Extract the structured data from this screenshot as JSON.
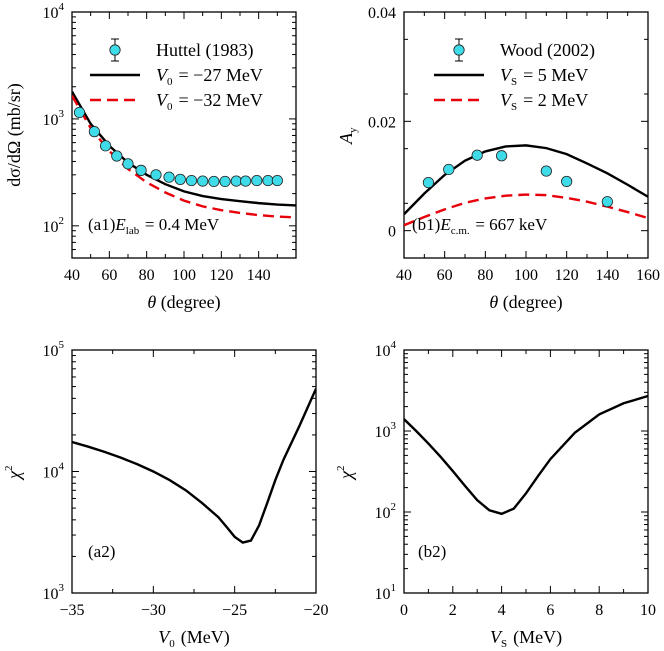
{
  "chart_data": [
    {
      "id": "a1",
      "type": "scatter+line",
      "xscale": "linear",
      "yscale": "log",
      "xlim": [
        40,
        160
      ],
      "ylim": [
        50,
        10000
      ],
      "xticks": [
        40,
        60,
        80,
        100,
        120,
        140
      ],
      "xtick_labels": [
        "40",
        "60",
        "80",
        "100",
        "120",
        "140"
      ],
      "yticks": [
        100,
        1000,
        10000
      ],
      "ytick_labels": [
        {
          "base": "10",
          "exp": "2"
        },
        {
          "base": "10",
          "exp": "3"
        },
        {
          "base": "10",
          "exp": "4"
        }
      ],
      "xlabel": "θ (degree)",
      "ylabel": "dσ/dΩ (mb/sr)",
      "annotation": {
        "prefix": "(a1)",
        "var": "E",
        "sub": "lab",
        "rest": " = 0.4 MeV"
      },
      "legend": [
        {
          "kind": "marker",
          "text": "Huttel (1983)"
        },
        {
          "kind": "solid",
          "var": "V",
          "sub": "0",
          "rest": " = −27 MeV"
        },
        {
          "kind": "dashed",
          "var": "V",
          "sub": "0",
          "rest": " = −32 MeV"
        }
      ],
      "scatter": {
        "name": "Huttel (1983)",
        "x": [
          44,
          52,
          58,
          64,
          70,
          77,
          85,
          92,
          98,
          104,
          110,
          116,
          122,
          128,
          133,
          139,
          145,
          150
        ],
        "y": [
          1150,
          760,
          560,
          450,
          380,
          330,
          300,
          285,
          272,
          265,
          262,
          260,
          260,
          262,
          262,
          265,
          265,
          265
        ]
      },
      "series": [
        {
          "name": "V0 = −27 MeV",
          "style": "solid",
          "x": [
            40,
            50,
            60,
            70,
            80,
            90,
            100,
            110,
            120,
            130,
            140,
            150,
            160
          ],
          "y": [
            1800,
            900,
            560,
            390,
            300,
            245,
            210,
            190,
            178,
            170,
            163,
            158,
            155
          ]
        },
        {
          "name": "V0 = −32 MeV",
          "style": "dashed",
          "x": [
            40,
            50,
            60,
            70,
            80,
            90,
            100,
            110,
            120,
            130,
            140,
            150,
            160
          ],
          "y": [
            1650,
            820,
            500,
            340,
            255,
            205,
            172,
            152,
            140,
            132,
            126,
            122,
            120
          ]
        }
      ]
    },
    {
      "id": "b1",
      "type": "scatter+line",
      "xscale": "linear",
      "yscale": "linear",
      "xlim": [
        40,
        160
      ],
      "ylim": [
        -0.005,
        0.04
      ],
      "xticks": [
        40,
        60,
        80,
        100,
        120,
        140,
        160
      ],
      "xtick_labels": [
        "40",
        "60",
        "80",
        "100",
        "120",
        "140",
        "160"
      ],
      "yticks": [
        0,
        0.02,
        0.04
      ],
      "ytick_labels": [
        "0",
        "0.02",
        "0.04"
      ],
      "xlabel": "θ (degree)",
      "ylabel": {
        "var": "A",
        "sub": "y"
      },
      "annotation": {
        "prefix": "(b1)",
        "var": "E",
        "sub": "c.m.",
        "rest": " = 667 keV"
      },
      "legend": [
        {
          "kind": "marker",
          "text": "Wood (2002)"
        },
        {
          "kind": "solid",
          "var": "V",
          "sub": "S",
          "rest": " = 5 MeV"
        },
        {
          "kind": "dashed",
          "var": "V",
          "sub": "S",
          "rest": " = 2 MeV"
        }
      ],
      "scatter": {
        "name": "Wood (2002)",
        "x": [
          52,
          62,
          76,
          88,
          110,
          120,
          140
        ],
        "y": [
          0.0088,
          0.0112,
          0.0138,
          0.0137,
          0.0109,
          0.009,
          0.0053
        ]
      },
      "series": [
        {
          "name": "VS = 5 MeV",
          "style": "solid",
          "x": [
            40,
            50,
            60,
            70,
            80,
            90,
            100,
            110,
            120,
            130,
            140,
            150,
            160
          ],
          "y": [
            0.003,
            0.0068,
            0.0102,
            0.0128,
            0.0145,
            0.0154,
            0.0156,
            0.0151,
            0.014,
            0.0123,
            0.0105,
            0.0084,
            0.0062
          ]
        },
        {
          "name": "VS = 2 MeV",
          "style": "dashed",
          "x": [
            40,
            50,
            60,
            70,
            80,
            90,
            100,
            110,
            120,
            130,
            140,
            150,
            160
          ],
          "y": [
            0.001,
            0.0025,
            0.0039,
            0.0051,
            0.0059,
            0.0064,
            0.0066,
            0.0065,
            0.006,
            0.0053,
            0.0044,
            0.0034,
            0.0023
          ]
        }
      ]
    },
    {
      "id": "a2",
      "type": "line",
      "xscale": "linear",
      "yscale": "log",
      "xlim": [
        -35,
        -20
      ],
      "ylim": [
        1000,
        100000
      ],
      "xticks": [
        -35,
        -30,
        -25,
        -20
      ],
      "xtick_labels": [
        "−35",
        "−30",
        "−25",
        "−20"
      ],
      "yticks": [
        1000,
        10000,
        100000
      ],
      "ytick_labels": [
        {
          "base": "10",
          "exp": "3"
        },
        {
          "base": "10",
          "exp": "4"
        },
        {
          "base": "10",
          "exp": "5"
        }
      ],
      "xlabel": {
        "var": "V",
        "sub": "0",
        "rest": " (MeV)"
      },
      "ylabel": {
        "var": "χ",
        "sup": "2"
      },
      "annotation": {
        "prefix": "(a2)"
      },
      "series": [
        {
          "name": "chi2",
          "style": "solid",
          "x": [
            -35,
            -34,
            -33,
            -32,
            -31,
            -30,
            -29,
            -28,
            -27,
            -26,
            -25.5,
            -25,
            -24.5,
            -24,
            -23.5,
            -23,
            -22.5,
            -22,
            -21,
            -20
          ],
          "y": [
            17500,
            16000,
            14500,
            13000,
            11500,
            10000,
            8500,
            7000,
            5500,
            4200,
            3500,
            2900,
            2600,
            2700,
            3600,
            5500,
            8500,
            12500,
            24000,
            48000
          ]
        }
      ]
    },
    {
      "id": "b2",
      "type": "line",
      "xscale": "linear",
      "yscale": "log",
      "xlim": [
        0,
        10
      ],
      "ylim": [
        10,
        10000
      ],
      "xticks": [
        0,
        2,
        4,
        6,
        8,
        10
      ],
      "xtick_labels": [
        "0",
        "2",
        "4",
        "6",
        "8",
        "10"
      ],
      "yticks": [
        10,
        100,
        1000,
        10000
      ],
      "ytick_labels": [
        {
          "base": "10",
          "exp": "1"
        },
        {
          "base": "10",
          "exp": "2"
        },
        {
          "base": "10",
          "exp": "3"
        },
        {
          "base": "10",
          "exp": "4"
        }
      ],
      "xlabel": {
        "var": "V",
        "sub": "S",
        "rest": " (MeV)"
      },
      "ylabel": {
        "var": "χ",
        "sup": "2"
      },
      "annotation": {
        "prefix": "(b2)"
      },
      "series": [
        {
          "name": "chi2",
          "style": "solid",
          "x": [
            0,
            0.5,
            1,
            1.5,
            2,
            2.5,
            3,
            3.5,
            4,
            4.5,
            5,
            5.5,
            6,
            7,
            8,
            9,
            10
          ],
          "y": [
            1400,
            1000,
            700,
            480,
            320,
            210,
            140,
            105,
            95,
            110,
            170,
            280,
            450,
            950,
            1600,
            2200,
            2700
          ]
        }
      ]
    }
  ]
}
